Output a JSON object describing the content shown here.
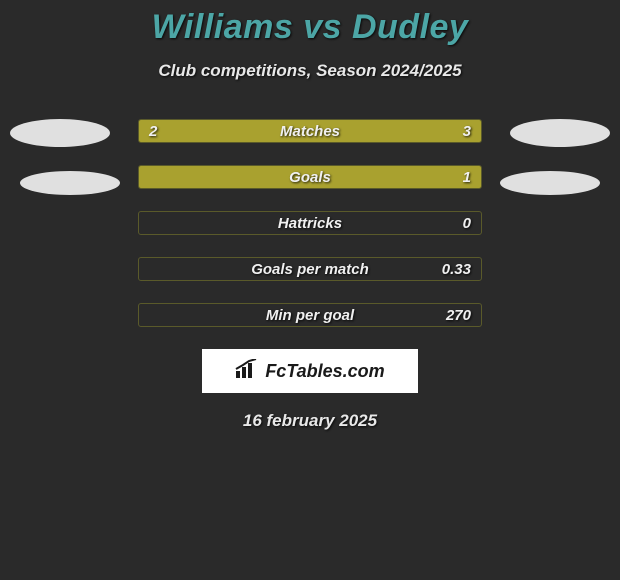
{
  "title": "Williams vs Dudley",
  "subtitle": "Club competitions, Season 2024/2025",
  "colors": {
    "background": "#2a2a2a",
    "title": "#4ca6a6",
    "text": "#e8e8e8",
    "bar_fill": "#a9a12f",
    "bar_border": "#5a5a2a",
    "disc": "#e0e0e0"
  },
  "bars": [
    {
      "label": "Matches",
      "left": "2",
      "right": "3",
      "left_pct": 40,
      "right_pct": 60
    },
    {
      "label": "Goals",
      "left": "",
      "right": "1",
      "left_pct": 0,
      "right_pct": 100
    },
    {
      "label": "Hattricks",
      "left": "",
      "right": "0",
      "left_pct": 0,
      "right_pct": 0
    },
    {
      "label": "Goals per match",
      "left": "",
      "right": "0.33",
      "left_pct": 0,
      "right_pct": 0
    },
    {
      "label": "Min per goal",
      "left": "",
      "right": "270",
      "left_pct": 0,
      "right_pct": 0
    }
  ],
  "brand": "FcTables.com",
  "footer_date": "16 february 2025"
}
